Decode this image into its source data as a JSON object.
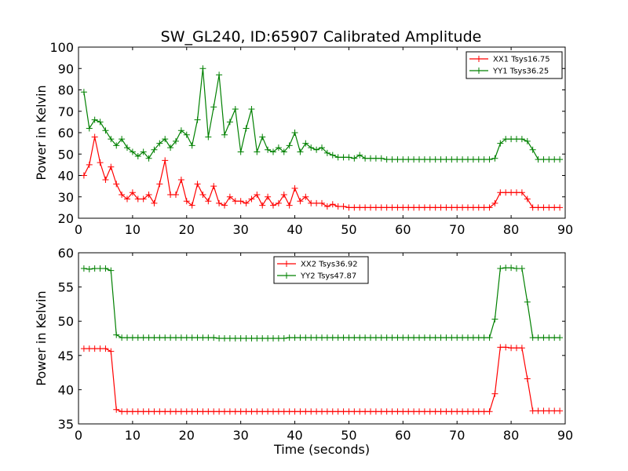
{
  "chart_data": [
    {
      "type": "line",
      "title": "SW_GL240, ID:65907 Calibrated Amplitude",
      "xlabel": "",
      "ylabel": "Power in Kelvin",
      "xlim": [
        0,
        90
      ],
      "ylim": [
        20,
        100
      ],
      "xticks": [
        0,
        10,
        20,
        30,
        40,
        50,
        60,
        70,
        80,
        90
      ],
      "yticks": [
        20,
        30,
        40,
        50,
        60,
        70,
        80,
        90,
        100
      ],
      "legend_position": "top-right",
      "grid": false,
      "marker": "+",
      "x": [
        1,
        2,
        3,
        4,
        5,
        6,
        7,
        8,
        9,
        10,
        11,
        12,
        13,
        14,
        15,
        16,
        17,
        18,
        19,
        20,
        21,
        22,
        23,
        24,
        25,
        26,
        27,
        28,
        29,
        30,
        31,
        32,
        33,
        34,
        35,
        36,
        37,
        38,
        39,
        40,
        41,
        42,
        43,
        44,
        45,
        46,
        47,
        48,
        49,
        50,
        51,
        52,
        53,
        54,
        55,
        56,
        57,
        58,
        59,
        60,
        61,
        62,
        63,
        64,
        65,
        66,
        67,
        68,
        69,
        70,
        71,
        72,
        73,
        74,
        75,
        76,
        77,
        78,
        79,
        80,
        81,
        82,
        83,
        84,
        85,
        86,
        87,
        88,
        89
      ],
      "series": [
        {
          "name": "XX1 Tsys16.75",
          "color": "#ff0000",
          "values": [
            40,
            45,
            58,
            46,
            38,
            44,
            36,
            31,
            29,
            32,
            29,
            29,
            31,
            27,
            36,
            47,
            31,
            31,
            38,
            28,
            26,
            36,
            31,
            28,
            35,
            27,
            26,
            30,
            28,
            28,
            27,
            29,
            31,
            26,
            30,
            26,
            27,
            31,
            26,
            34,
            28,
            30,
            27,
            27,
            27,
            25.5,
            26.5,
            25.5,
            25.5,
            25,
            25,
            25,
            25,
            25,
            25,
            25,
            25,
            25,
            25,
            25,
            25,
            25,
            25,
            25,
            25,
            25,
            25,
            25,
            25,
            25,
            25,
            25,
            25,
            25,
            25,
            25,
            27,
            32,
            32,
            32,
            32,
            32,
            29,
            25,
            25,
            25,
            25,
            25,
            25
          ]
        },
        {
          "name": "YY1 Tsys36.25",
          "color": "#008000",
          "values": [
            79,
            62,
            66,
            65,
            61,
            57,
            54,
            57,
            53,
            51,
            49,
            51,
            48,
            52,
            55,
            57,
            53,
            56,
            61,
            59,
            54,
            66,
            90,
            58,
            72,
            87,
            59,
            65,
            71,
            51,
            62,
            71,
            51,
            58,
            52,
            51,
            53,
            51,
            54,
            60,
            51,
            55,
            53,
            52,
            53,
            50.5,
            49.5,
            48.5,
            48.5,
            48.5,
            48,
            49.5,
            48,
            48,
            48,
            48,
            47.5,
            47.5,
            47.5,
            47.5,
            47.5,
            47.5,
            47.5,
            47.5,
            47.5,
            47.5,
            47.5,
            47.5,
            47.5,
            47.5,
            47.5,
            47.5,
            47.5,
            47.5,
            47.5,
            47.5,
            48,
            55,
            57,
            57,
            57,
            57,
            56,
            52,
            47.5,
            47.5,
            47.5,
            47.5,
            47.5
          ]
        }
      ]
    },
    {
      "type": "line",
      "title": "",
      "xlabel": "Time (seconds)",
      "ylabel": "Power in Kelvin",
      "xlim": [
        0,
        90
      ],
      "ylim": [
        35,
        60
      ],
      "xticks": [
        0,
        10,
        20,
        30,
        40,
        50,
        60,
        70,
        80,
        90
      ],
      "yticks": [
        35,
        40,
        45,
        50,
        55,
        60
      ],
      "legend_position": "top-center",
      "grid": false,
      "marker": "+",
      "x": [
        1,
        2,
        3,
        4,
        5,
        6,
        7,
        8,
        9,
        10,
        11,
        12,
        13,
        14,
        15,
        16,
        17,
        18,
        19,
        20,
        21,
        22,
        23,
        24,
        25,
        26,
        27,
        28,
        29,
        30,
        31,
        32,
        33,
        34,
        35,
        36,
        37,
        38,
        39,
        40,
        41,
        42,
        43,
        44,
        45,
        46,
        47,
        48,
        49,
        50,
        51,
        52,
        53,
        54,
        55,
        56,
        57,
        58,
        59,
        60,
        61,
        62,
        63,
        64,
        65,
        66,
        67,
        68,
        69,
        70,
        71,
        72,
        73,
        74,
        75,
        76,
        77,
        78,
        79,
        80,
        81,
        82,
        83,
        84,
        85,
        86,
        87,
        88,
        89
      ],
      "series": [
        {
          "name": "XX2 Tsys36.92",
          "color": "#ff0000",
          "values": [
            46,
            46,
            46,
            46,
            46,
            45.6,
            37.1,
            36.8,
            36.8,
            36.8,
            36.8,
            36.8,
            36.8,
            36.8,
            36.8,
            36.8,
            36.8,
            36.8,
            36.8,
            36.8,
            36.8,
            36.8,
            36.8,
            36.8,
            36.8,
            36.8,
            36.8,
            36.8,
            36.8,
            36.8,
            36.8,
            36.8,
            36.8,
            36.8,
            36.8,
            36.8,
            36.8,
            36.8,
            36.8,
            36.8,
            36.8,
            36.8,
            36.8,
            36.8,
            36.8,
            36.8,
            36.8,
            36.8,
            36.8,
            36.8,
            36.8,
            36.8,
            36.8,
            36.8,
            36.8,
            36.8,
            36.8,
            36.8,
            36.8,
            36.8,
            36.8,
            36.8,
            36.8,
            36.8,
            36.8,
            36.8,
            36.8,
            36.8,
            36.8,
            36.8,
            36.8,
            36.8,
            36.8,
            36.8,
            36.8,
            36.8,
            39.4,
            46.2,
            46.2,
            46.1,
            46.1,
            46.1,
            41.6,
            36.9,
            36.9,
            36.9,
            36.9,
            36.9,
            36.9
          ]
        },
        {
          "name": "YY2 Tsys47.87",
          "color": "#008000",
          "values": [
            57.7,
            57.6,
            57.7,
            57.7,
            57.7,
            57.4,
            48,
            47.6,
            47.6,
            47.6,
            47.6,
            47.6,
            47.6,
            47.6,
            47.6,
            47.6,
            47.6,
            47.6,
            47.6,
            47.6,
            47.6,
            47.6,
            47.6,
            47.6,
            47.6,
            47.5,
            47.5,
            47.5,
            47.5,
            47.5,
            47.5,
            47.5,
            47.5,
            47.5,
            47.5,
            47.5,
            47.5,
            47.5,
            47.6,
            47.6,
            47.6,
            47.6,
            47.6,
            47.6,
            47.6,
            47.6,
            47.6,
            47.6,
            47.6,
            47.6,
            47.6,
            47.6,
            47.6,
            47.6,
            47.6,
            47.6,
            47.6,
            47.6,
            47.6,
            47.6,
            47.6,
            47.6,
            47.6,
            47.6,
            47.6,
            47.6,
            47.6,
            47.6,
            47.6,
            47.6,
            47.6,
            47.6,
            47.6,
            47.6,
            47.6,
            47.6,
            50.3,
            57.7,
            57.8,
            57.8,
            57.7,
            57.7,
            52.8,
            47.6,
            47.6,
            47.6,
            47.6,
            47.6,
            47.6
          ]
        }
      ]
    }
  ]
}
